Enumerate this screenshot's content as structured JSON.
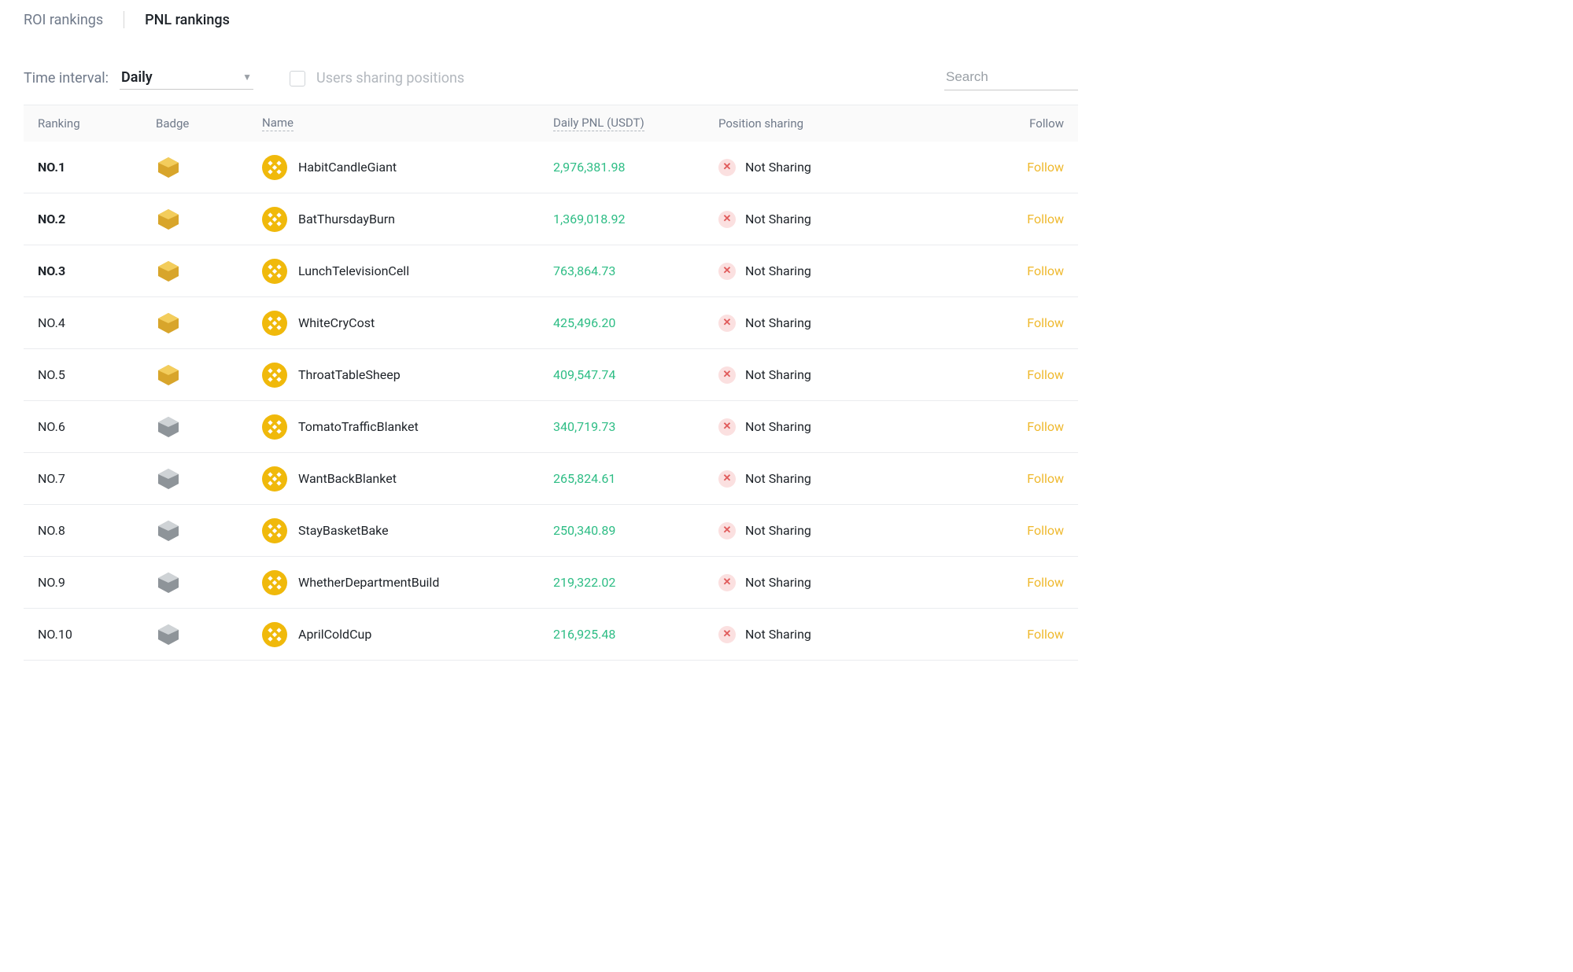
{
  "tabs": {
    "roi": "ROI rankings",
    "pnl": "PNL rankings",
    "active": "pnl"
  },
  "controls": {
    "time_interval_label": "Time interval:",
    "time_interval_value": "Daily",
    "checkbox_label": "Users sharing positions",
    "search_placeholder": "Search"
  },
  "table": {
    "headers": {
      "ranking": "Ranking",
      "badge": "Badge",
      "name": "Name",
      "pnl": "Daily PNL (USDT)",
      "sharing": "Position sharing",
      "follow": "Follow"
    },
    "follow_label": "Follow",
    "not_sharing_label": "Not Sharing",
    "colors": {
      "pnl_positive": "#2ebd85",
      "follow_link": "#efb82c",
      "badge_gold_light": "#f3cd5c",
      "badge_gold_dark": "#d8a52b",
      "badge_silver_light": "#cfd3d6",
      "badge_silver_dark": "#8e9499",
      "avatar_bg": "#f0b90b",
      "avatar_logo": "#ffffff",
      "x_bg": "#fbe0e0",
      "x_fg": "#e05a5a"
    },
    "rows": [
      {
        "rank": "NO.1",
        "bold": true,
        "badge": "gold",
        "name": "HabitCandleGiant",
        "pnl": "2,976,381.98",
        "sharing": false
      },
      {
        "rank": "NO.2",
        "bold": true,
        "badge": "gold",
        "name": "BatThursdayBurn",
        "pnl": "1,369,018.92",
        "sharing": false
      },
      {
        "rank": "NO.3",
        "bold": true,
        "badge": "gold",
        "name": "LunchTelevisionCell",
        "pnl": "763,864.73",
        "sharing": false
      },
      {
        "rank": "NO.4",
        "bold": false,
        "badge": "gold",
        "name": "WhiteCryCost",
        "pnl": "425,496.20",
        "sharing": false
      },
      {
        "rank": "NO.5",
        "bold": false,
        "badge": "gold",
        "name": "ThroatTableSheep",
        "pnl": "409,547.74",
        "sharing": false
      },
      {
        "rank": "NO.6",
        "bold": false,
        "badge": "silver",
        "name": "TomatoTrafficBlanket",
        "pnl": "340,719.73",
        "sharing": false
      },
      {
        "rank": "NO.7",
        "bold": false,
        "badge": "silver",
        "name": "WantBackBlanket",
        "pnl": "265,824.61",
        "sharing": false
      },
      {
        "rank": "NO.8",
        "bold": false,
        "badge": "silver",
        "name": "StayBasketBake",
        "pnl": "250,340.89",
        "sharing": false
      },
      {
        "rank": "NO.9",
        "bold": false,
        "badge": "silver",
        "name": "WhetherDepartmentBuild",
        "pnl": "219,322.02",
        "sharing": false
      },
      {
        "rank": "NO.10",
        "bold": false,
        "badge": "silver",
        "name": "AprilColdCup",
        "pnl": "216,925.48",
        "sharing": false
      }
    ]
  }
}
